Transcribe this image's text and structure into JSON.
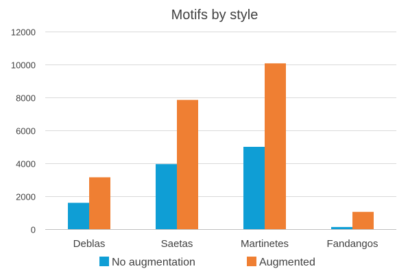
{
  "chart_data": {
    "type": "bar",
    "title": "Motifs by style",
    "categories": [
      "Deblas",
      "Saetas",
      "Martinetes",
      "Fandangos"
    ],
    "series": [
      {
        "name": "No augmentation",
        "color": "#0f9ed5",
        "values": [
          1600,
          3950,
          5000,
          130
        ]
      },
      {
        "name": "Augmented",
        "color": "#ef7f33",
        "values": [
          3150,
          7850,
          10070,
          1050
        ]
      }
    ],
    "ylim": [
      0,
      12000
    ],
    "yticks": [
      0,
      2000,
      4000,
      6000,
      8000,
      10000,
      12000
    ],
    "grid": true,
    "legend_position": "bottom"
  }
}
